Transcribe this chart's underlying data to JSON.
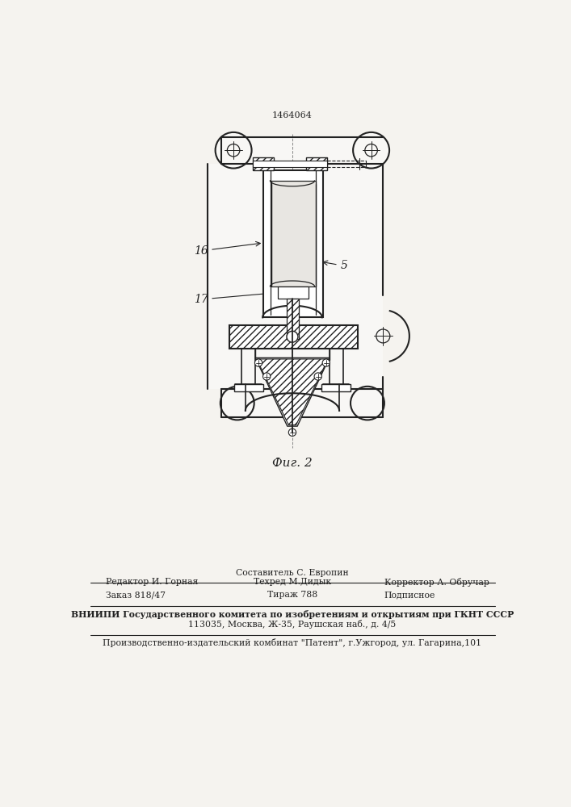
{
  "patent_number": "1464064",
  "fig_label": "Фиг. 2",
  "bg_color": "#f5f3ef",
  "line_color": "#222222",
  "footer": {
    "line1_center": "Составитель С. Европин",
    "line2_left": "Редактор И. Горная",
    "line2_mid": "Техред М.Дидык",
    "line2_right": "Корректор А. Обручар",
    "line3_left": "Заказ 818/47",
    "line3_mid": "Тираж 788",
    "line3_right": "Подписное",
    "line4": "ВНИИПИ Государственного комитета по изобретениям и открытиям при ГКНТ СССР",
    "line5": "113035, Москва, Ж-35, Раушская наб., д. 4/5",
    "line6": "Производственно-издательский комбинат \"Патент\", г.Ужгород, ул. Гагарина,101"
  }
}
